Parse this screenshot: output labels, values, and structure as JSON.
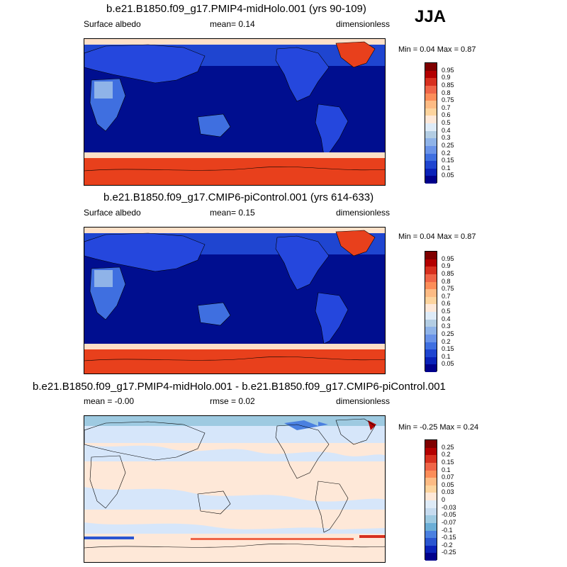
{
  "season": "JJA",
  "panels": [
    {
      "title": "b.e21.B1850.f09_g17.PMIP4-midHolo.001 (yrs 90-109)",
      "left_label": "Surface albedo",
      "mid_label": "mean=   0.14",
      "right_label": "dimensionless",
      "minmax": "Min =   0.04 Max =   0.87",
      "colorbar_labels": [
        "0.95",
        "0.9",
        "0.85",
        "0.8",
        "0.75",
        "0.7",
        "0.6",
        "0.5",
        "0.4",
        "0.3",
        "0.25",
        "0.2",
        "0.15",
        "0.1",
        "0.05"
      ]
    },
    {
      "title": "b.e21.B1850.f09_g17.CMIP6-piControl.001 (yrs 614-633)",
      "left_label": "Surface albedo",
      "mid_label": "mean=   0.15",
      "right_label": "dimensionless",
      "minmax": "Min =   0.04 Max =   0.87",
      "colorbar_labels": [
        "0.95",
        "0.9",
        "0.85",
        "0.8",
        "0.75",
        "0.7",
        "0.6",
        "0.5",
        "0.4",
        "0.3",
        "0.25",
        "0.2",
        "0.15",
        "0.1",
        "0.05"
      ]
    },
    {
      "title": "b.e21.B1850.f09_g17.PMIP4-midHolo.001 - b.e21.B1850.f09_g17.CMIP6-piControl.001",
      "left_label": "mean =  -0.00",
      "mid_label": "rmse =   0.02",
      "right_label": "dimensionless",
      "minmax": "Min =  -0.25 Max =   0.24",
      "colorbar_labels": [
        "0.25",
        "0.2",
        "0.15",
        "0.1",
        "0.07",
        "0.05",
        "0.03",
        "0",
        "-0.03",
        "-0.05",
        "-0.07",
        "-0.1",
        "-0.15",
        "-0.2",
        "-0.25"
      ]
    }
  ],
  "colors": {
    "abs_scale": [
      "#7f0000",
      "#b30000",
      "#d7301f",
      "#ef6548",
      "#fc8d59",
      "#fdbb84",
      "#fdd49e",
      "#fee8d8",
      "#deebf7",
      "#b3cde3",
      "#8fb3e8",
      "#6a93e8",
      "#3f6fe0",
      "#1f45d0",
      "#0a22b8",
      "#00008b"
    ],
    "diff_scale": [
      "#7f0000",
      "#b30000",
      "#d7301f",
      "#ef6548",
      "#fc8d59",
      "#fdbb84",
      "#fdd49e",
      "#fee8d8",
      "#deebf7",
      "#c6dbef",
      "#9ecae1",
      "#6baed6",
      "#4a80e0",
      "#2a55d0",
      "#0a22b8",
      "#00008b"
    ],
    "ocean_dark": "#000e8f",
    "land_blue": "#2547dd",
    "sea_ice_red": "#e8401c",
    "greenland_red": "#ef6548",
    "arctic_peach": "#fde0c8",
    "diff_background": "#fee8d8",
    "diff_light_blue": "#d6e6fa"
  },
  "chart_data": [
    {
      "type": "heatmap",
      "title": "b.e21.B1850.f09_g17.PMIP4-midHolo.001 (yrs 90-109)",
      "variable": "Surface albedo",
      "units": "dimensionless",
      "season": "JJA",
      "mean": 0.14,
      "min": 0.04,
      "max": 0.87,
      "contour_levels": [
        0.05,
        0.1,
        0.15,
        0.2,
        0.25,
        0.3,
        0.4,
        0.5,
        0.6,
        0.7,
        0.75,
        0.8,
        0.85,
        0.9,
        0.95
      ]
    },
    {
      "type": "heatmap",
      "title": "b.e21.B1850.f09_g17.CMIP6-piControl.001 (yrs 614-633)",
      "variable": "Surface albedo",
      "units": "dimensionless",
      "season": "JJA",
      "mean": 0.15,
      "min": 0.04,
      "max": 0.87,
      "contour_levels": [
        0.05,
        0.1,
        0.15,
        0.2,
        0.25,
        0.3,
        0.4,
        0.5,
        0.6,
        0.7,
        0.75,
        0.8,
        0.85,
        0.9,
        0.95
      ]
    },
    {
      "type": "heatmap",
      "title": "b.e21.B1850.f09_g17.PMIP4-midHolo.001 - b.e21.B1850.f09_g17.CMIP6-piControl.001",
      "units": "dimensionless",
      "season": "JJA",
      "mean": -0.0,
      "rmse": 0.02,
      "min": -0.25,
      "max": 0.24,
      "contour_levels": [
        -0.25,
        -0.2,
        -0.15,
        -0.1,
        -0.07,
        -0.05,
        -0.03,
        0,
        0.03,
        0.05,
        0.07,
        0.1,
        0.15,
        0.2,
        0.25
      ]
    }
  ]
}
